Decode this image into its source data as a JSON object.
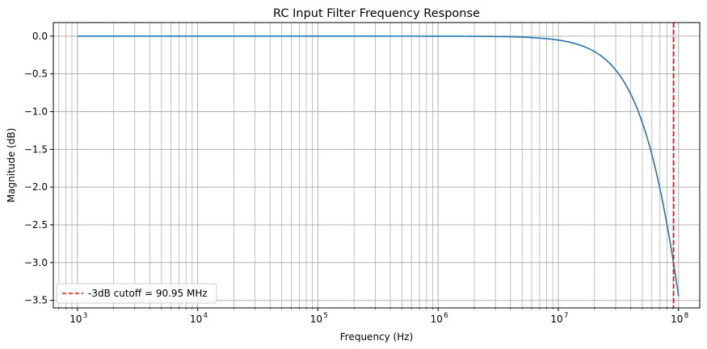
{
  "chart_data": {
    "type": "line",
    "title": "RC Input Filter Frequency Response",
    "xlabel": "Frequency (Hz)",
    "ylabel": "Magnitude (dB)",
    "xscale": "log",
    "xlim": [
      630,
      150000000
    ],
    "ylim": [
      -3.6,
      0.18
    ],
    "grid": "both-major-minor",
    "legend_position": "lower-left",
    "x_ticks": [
      {
        "value": 1000,
        "mantissa": "10",
        "exp": "3"
      },
      {
        "value": 10000,
        "mantissa": "10",
        "exp": "4"
      },
      {
        "value": 100000,
        "mantissa": "10",
        "exp": "5"
      },
      {
        "value": 1000000,
        "mantissa": "10",
        "exp": "6"
      },
      {
        "value": 10000000,
        "mantissa": "10",
        "exp": "7"
      },
      {
        "value": 100000000,
        "mantissa": "10",
        "exp": "8"
      }
    ],
    "y_ticks": [
      "0.0",
      "−0.5",
      "−1.0",
      "−1.5",
      "−2.0",
      "−2.5",
      "−3.0",
      "−3.5"
    ],
    "y_tick_values": [
      0.0,
      -0.5,
      -1.0,
      -1.5,
      -2.0,
      -2.5,
      -3.0,
      -3.5
    ],
    "series": [
      {
        "kind": "line",
        "color": "#1f77b4",
        "x_range": [
          1000,
          100000000
        ],
        "cutoff_hz": 90950000,
        "formula": "-10*log10(1+(f/fc)^2)"
      }
    ],
    "annotations": [
      {
        "kind": "vline",
        "x": 90950000,
        "color": "#ff0000",
        "style": "dashed",
        "label": "-3dB cutoff = 90.95 MHz"
      }
    ]
  }
}
